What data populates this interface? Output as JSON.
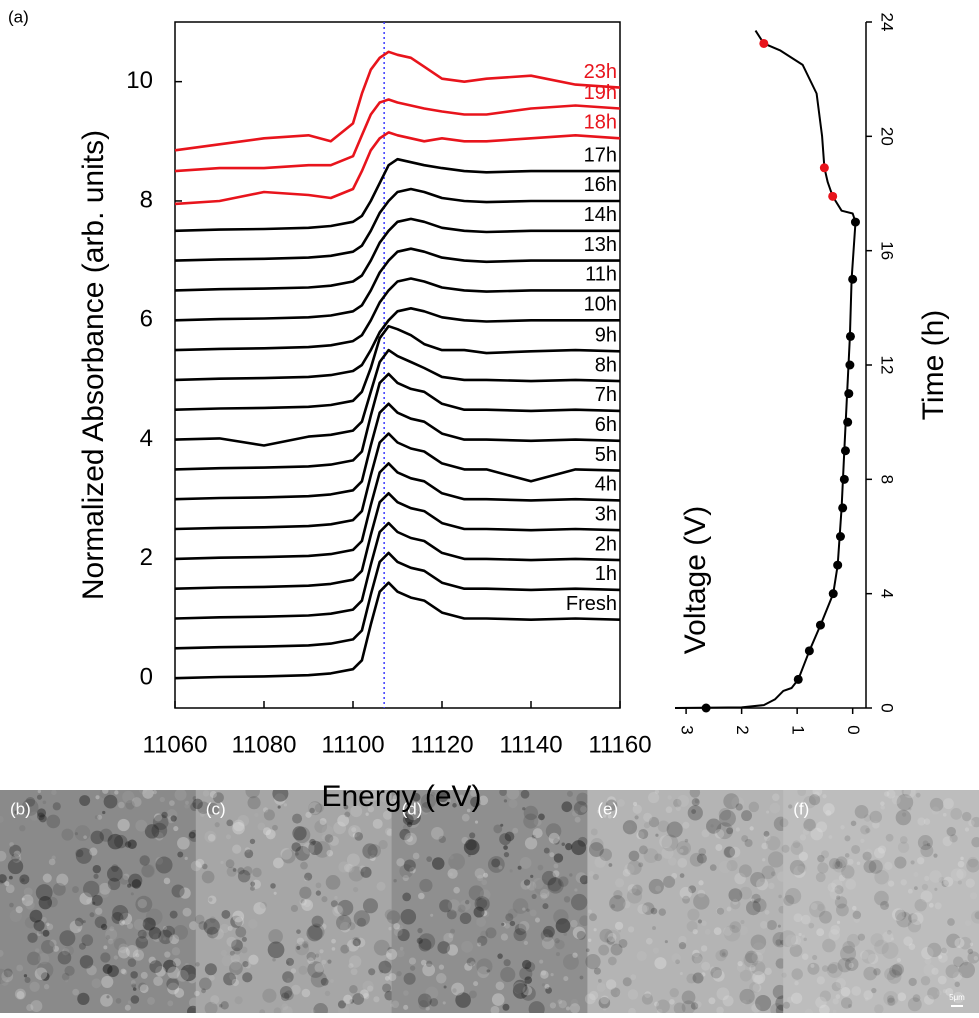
{
  "figure_label": "(a)",
  "chart_data": [
    {
      "type": "line",
      "xlabel": "Energy (eV)",
      "ylabel": "Normalized Absorbance (arb. units)",
      "xlim": [
        11060,
        11160
      ],
      "ylim": [
        -0.5,
        11
      ],
      "xticks": [
        11060,
        11080,
        11100,
        11120,
        11140,
        11160
      ],
      "yticks": [
        0,
        2,
        4,
        6,
        8,
        10
      ],
      "vline": {
        "x": 11107,
        "color": "#3b3bff"
      },
      "x": [
        11060,
        11070,
        11080,
        11090,
        11095,
        11100,
        11102,
        11104,
        11106,
        11108,
        11110,
        11113,
        11116,
        11120,
        11125,
        11130,
        11140,
        11150,
        11160
      ],
      "series": [
        {
          "name": "Fresh",
          "color": "#000000",
          "values": [
            0,
            0.02,
            0.03,
            0.05,
            0.08,
            0.15,
            0.3,
            0.9,
            1.45,
            1.6,
            1.45,
            1.35,
            1.3,
            1.1,
            1,
            1,
            0.98,
            1,
            0.98
          ]
        },
        {
          "name": "1h",
          "color": "#000000",
          "values": [
            0.5,
            0.52,
            0.53,
            0.55,
            0.58,
            0.65,
            0.8,
            1.4,
            1.95,
            2.1,
            1.95,
            1.85,
            1.8,
            1.6,
            1.5,
            1.5,
            1.48,
            1.5,
            1.48
          ]
        },
        {
          "name": "2h",
          "color": "#000000",
          "values": [
            1,
            1.02,
            1.03,
            1.05,
            1.08,
            1.15,
            1.3,
            1.9,
            2.45,
            2.6,
            2.45,
            2.35,
            2.3,
            2.1,
            2,
            2,
            1.98,
            2,
            1.98
          ]
        },
        {
          "name": "3h",
          "color": "#000000",
          "values": [
            1.5,
            1.52,
            1.53,
            1.55,
            1.58,
            1.65,
            1.8,
            2.4,
            2.95,
            3.1,
            2.95,
            2.85,
            2.8,
            2.6,
            2.5,
            2.5,
            2.48,
            2.5,
            2.48
          ]
        },
        {
          "name": "4h",
          "color": "#000000",
          "values": [
            2,
            2.02,
            2.03,
            2.05,
            2.08,
            2.15,
            2.3,
            2.9,
            3.45,
            3.6,
            3.45,
            3.35,
            3.3,
            3.1,
            3,
            3,
            2.98,
            3,
            2.98
          ]
        },
        {
          "name": "5h",
          "color": "#000000",
          "values": [
            2.5,
            2.52,
            2.53,
            2.55,
            2.58,
            2.65,
            2.8,
            3.4,
            3.95,
            4.1,
            3.95,
            3.85,
            3.8,
            3.6,
            3.5,
            3.5,
            3.3,
            3.5,
            3.48
          ]
        },
        {
          "name": "6h",
          "color": "#000000",
          "values": [
            3,
            3.02,
            3.03,
            3.05,
            3.08,
            3.15,
            3.3,
            3.9,
            4.45,
            4.6,
            4.45,
            4.35,
            4.3,
            4.1,
            4,
            4,
            3.98,
            4,
            3.98
          ]
        },
        {
          "name": "7h",
          "color": "#000000",
          "values": [
            3.5,
            3.52,
            3.53,
            3.55,
            3.58,
            3.65,
            3.8,
            4.4,
            4.95,
            5.1,
            4.95,
            4.85,
            4.8,
            4.6,
            4.5,
            4.5,
            4.48,
            4.5,
            4.48
          ]
        },
        {
          "name": "8h",
          "color": "#000000",
          "values": [
            4,
            4.02,
            3.9,
            4.05,
            4.08,
            4.15,
            4.3,
            4.8,
            5.3,
            5.5,
            5.4,
            5.3,
            5.2,
            5.05,
            5,
            5,
            4.98,
            5,
            4.98
          ]
        },
        {
          "name": "9h",
          "color": "#000000",
          "values": [
            4.5,
            4.52,
            4.53,
            4.55,
            4.58,
            4.65,
            4.8,
            5.2,
            5.7,
            5.9,
            5.85,
            5.75,
            5.6,
            5.5,
            5.5,
            5.45,
            5.48,
            5.5,
            5.48
          ]
        },
        {
          "name": "10h",
          "color": "#000000",
          "values": [
            5,
            5.02,
            5.03,
            5.05,
            5.08,
            5.15,
            5.25,
            5.5,
            5.8,
            6,
            6.15,
            6.2,
            6.15,
            6.05,
            6,
            5.98,
            6,
            6,
            6
          ]
        },
        {
          "name": "11h",
          "color": "#000000",
          "values": [
            5.5,
            5.52,
            5.53,
            5.55,
            5.58,
            5.65,
            5.75,
            6,
            6.3,
            6.5,
            6.65,
            6.7,
            6.65,
            6.55,
            6.5,
            6.48,
            6.5,
            6.5,
            6.5
          ]
        },
        {
          "name": "13h",
          "color": "#000000",
          "values": [
            6,
            6.02,
            6.03,
            6.05,
            6.08,
            6.15,
            6.25,
            6.5,
            6.8,
            7,
            7.15,
            7.2,
            7.15,
            7.05,
            7,
            6.98,
            7,
            7,
            7
          ]
        },
        {
          "name": "14h",
          "color": "#000000",
          "values": [
            6.5,
            6.52,
            6.53,
            6.55,
            6.58,
            6.65,
            6.75,
            7,
            7.3,
            7.5,
            7.65,
            7.7,
            7.65,
            7.55,
            7.5,
            7.48,
            7.5,
            7.5,
            7.5
          ]
        },
        {
          "name": "16h",
          "color": "#000000",
          "values": [
            7,
            7.02,
            7.03,
            7.05,
            7.08,
            7.15,
            7.25,
            7.5,
            7.8,
            8,
            8.15,
            8.2,
            8.15,
            8.05,
            8,
            7.98,
            8,
            8,
            8
          ]
        },
        {
          "name": "17h",
          "color": "#000000",
          "values": [
            7.5,
            7.52,
            7.53,
            7.55,
            7.58,
            7.65,
            7.75,
            8,
            8.3,
            8.6,
            8.7,
            8.65,
            8.6,
            8.55,
            8.5,
            8.48,
            8.5,
            8.5,
            8.5
          ]
        },
        {
          "name": "18h",
          "color": "#e8141c",
          "values": [
            7.95,
            8,
            8.15,
            8.1,
            8.05,
            8.2,
            8.5,
            8.85,
            9.05,
            9.15,
            9.1,
            9.05,
            9,
            9.05,
            9,
            9,
            9.05,
            9.1,
            9.05
          ]
        },
        {
          "name": "19h",
          "color": "#e8141c",
          "values": [
            8.5,
            8.55,
            8.55,
            8.6,
            8.6,
            8.75,
            9.1,
            9.45,
            9.65,
            9.7,
            9.65,
            9.6,
            9.55,
            9.5,
            9.45,
            9.45,
            9.55,
            9.6,
            9.55
          ]
        },
        {
          "name": "23h",
          "color": "#e8141c",
          "values": [
            8.85,
            8.95,
            9.05,
            9.1,
            9,
            9.3,
            9.8,
            10.2,
            10.4,
            10.5,
            10.45,
            10.4,
            10.25,
            10.05,
            10,
            10.05,
            10.1,
            9.95,
            9.9
          ]
        }
      ]
    },
    {
      "type": "scatter",
      "xlabel": "Voltage (V)",
      "ylabel": "Time (h)",
      "xlim": [
        3.2,
        -0.24
      ],
      "ylim": [
        0,
        24
      ],
      "xticks": [
        3,
        2,
        1,
        0
      ],
      "yticks": [
        0,
        4,
        8,
        12,
        16,
        20,
        24
      ],
      "line": {
        "color": "#000000",
        "x": [
          3.2,
          2.0,
          1.6,
          1.4,
          1.25,
          1.1,
          0.98,
          0.78,
          0.58,
          0.35,
          0.27,
          0.2,
          0.15,
          0.1,
          0.05,
          0.02,
          -0.05,
          0.0,
          0.2,
          0.36,
          0.45,
          0.51,
          0.55,
          0.65,
          0.9,
          1.3,
          1.6,
          1.75
        ],
        "y": [
          0,
          0.02,
          0.1,
          0.3,
          0.6,
          0.7,
          1,
          2,
          2.9,
          4,
          5,
          7,
          9,
          11,
          13,
          15,
          17,
          17.3,
          17.4,
          17.9,
          18.4,
          18.9,
          20,
          21.5,
          22.5,
          23,
          23.25,
          23.7
        ]
      },
      "series": [
        {
          "color": "#000000",
          "x": [
            2.64,
            0.98,
            0.78,
            0.58,
            0.35,
            0.27,
            0.22,
            0.18,
            0.15,
            0.13,
            0.09,
            0.07,
            0.05,
            0.04,
            0,
            -0.05
          ],
          "y": [
            0,
            1,
            2,
            2.9,
            4,
            5,
            6,
            7,
            8,
            9,
            10,
            11,
            12,
            13,
            15,
            17
          ]
        },
        {
          "color": "#e8141c",
          "x": [
            0.36,
            0.51,
            1.6
          ],
          "y": [
            17.9,
            18.9,
            23.25
          ]
        }
      ]
    }
  ],
  "panels": [
    "(b)",
    "(c)",
    "(d)",
    "(e)",
    "(f)"
  ],
  "scale_bar": "5μm"
}
